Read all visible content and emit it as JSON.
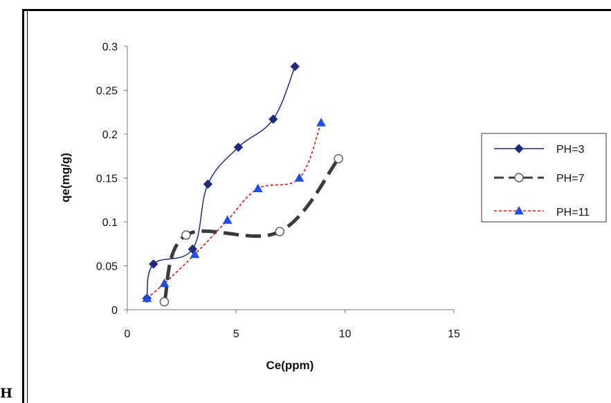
{
  "page": {
    "side_letter": "H"
  },
  "chart_data": {
    "type": "line",
    "title": "",
    "xlabel": "Ce(ppm)",
    "ylabel": "qe(mg/g)",
    "xlim": [
      0,
      15
    ],
    "ylim": [
      0,
      0.3
    ],
    "xticks": [
      0,
      5,
      10,
      15
    ],
    "yticks": [
      0,
      0.05,
      0.1,
      0.15,
      0.2,
      0.25,
      0.3
    ],
    "xtick_labels": [
      "0",
      "5",
      "10",
      "15"
    ],
    "ytick_labels": [
      "0",
      "0.05",
      "0.1",
      "0.15",
      "0.2",
      "0.25",
      "0.3"
    ],
    "grid": false,
    "legend_position": "right",
    "series": [
      {
        "name": "PH=3",
        "color": "#1f2a7a",
        "marker": "diamond",
        "line_style": "solid",
        "points": [
          [
            0.9,
            0.013
          ],
          [
            1.2,
            0.052
          ],
          [
            3.0,
            0.069
          ],
          [
            3.7,
            0.143
          ],
          [
            5.1,
            0.185
          ],
          [
            6.7,
            0.217
          ],
          [
            7.7,
            0.277
          ]
        ]
      },
      {
        "name": "PH=7",
        "color": "#3a3a3a",
        "marker": "circle-open",
        "line_style": "long-dash",
        "points": [
          [
            1.7,
            0.009
          ],
          [
            2.7,
            0.085
          ],
          [
            7.0,
            0.089
          ],
          [
            9.7,
            0.172
          ]
        ]
      },
      {
        "name": "PH=11",
        "color": "#e01010",
        "marker": "triangle",
        "line_style": "short-dash",
        "points": [
          [
            0.9,
            0.013
          ],
          [
            1.7,
            0.03
          ],
          [
            3.1,
            0.063
          ],
          [
            4.6,
            0.102
          ],
          [
            6.0,
            0.138
          ],
          [
            7.9,
            0.15
          ],
          [
            8.9,
            0.213
          ]
        ]
      }
    ]
  }
}
